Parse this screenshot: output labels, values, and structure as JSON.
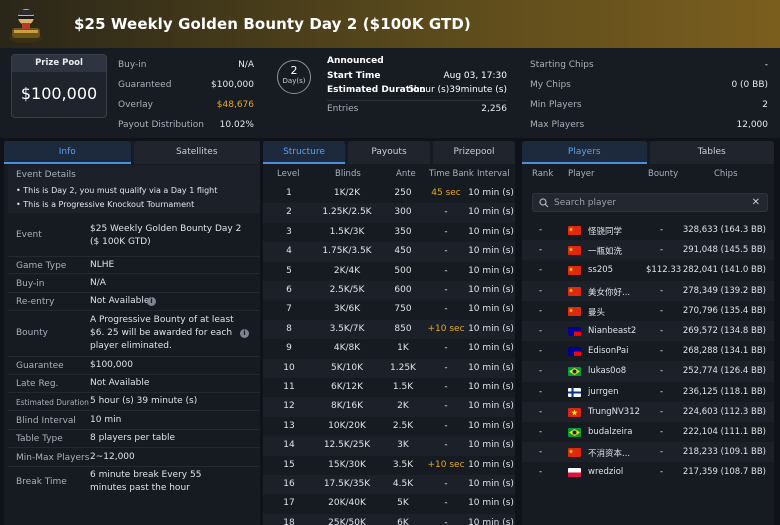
{
  "header": {
    "title": "$25 Weekly Golden Bounty Day 2 ($100K GTD)"
  },
  "prize_pool": {
    "label": "Prize Pool",
    "value": "$100,000"
  },
  "summary_left": [
    {
      "k": "Buy-in",
      "v": "N/A"
    },
    {
      "k": "Guaranteed",
      "v": "$100,000"
    },
    {
      "k": "Overlay",
      "v": "$48,676"
    },
    {
      "k": "Payout Distribution",
      "v": "10.02%"
    }
  ],
  "day": {
    "number": "2",
    "label": "Day(s)"
  },
  "status": {
    "announced": "Announced",
    "start_label": "Start Time",
    "start_value": "Aug 03, 17:30",
    "duration_label": "Estimated Duration",
    "duration_value": "5hour (s)39minute (s)",
    "entries_label": "Entries",
    "entries_value": "2,256"
  },
  "summary_right": [
    {
      "k": "Starting Chips",
      "v": "-"
    },
    {
      "k": "My Chips",
      "v": "0 (0 BB)"
    },
    {
      "k": "Min Players",
      "v": "2"
    },
    {
      "k": "Max Players",
      "v": "12,000"
    }
  ],
  "left_tabs": [
    "Info",
    "Satellites"
  ],
  "event_details": {
    "title": "Event Details",
    "lines": [
      "• This is Day 2, you must qualify via a Day 1 flight",
      "• This is a Progressive Knockout Tournament"
    ]
  },
  "info_rows": [
    {
      "k": "Event",
      "v": "$25 Weekly Golden Bounty Day 2 ($ 100K GTD)"
    },
    {
      "k": "Game Type",
      "v": "NLHE"
    },
    {
      "k": "Buy-in",
      "v": "N/A"
    },
    {
      "k": "Re-entry",
      "v": "Not Available"
    },
    {
      "k": "Bounty",
      "v": "A Progressive Bounty of at least $6. 25 will be awarded for each player eliminated."
    },
    {
      "k": "Guarantee",
      "v": "$100,000"
    },
    {
      "k": "Late Reg.",
      "v": "Not Available"
    },
    {
      "k": "Estimated Duration",
      "v": "5 hour (s) 39 minute (s)"
    },
    {
      "k": "Blind Interval",
      "v": "10 min"
    },
    {
      "k": "Table Type",
      "v": "8 players per table"
    },
    {
      "k": "Min-Max Players",
      "v": "2~12,000"
    },
    {
      "k": "Break Time",
      "v": "6 minute break Every 55 minutes past the hour"
    }
  ],
  "mid_tabs": [
    "Structure",
    "Payouts",
    "Prizepool"
  ],
  "structure": {
    "headers": [
      "Level",
      "Blinds",
      "Ante",
      "Time Bank",
      "Interval"
    ],
    "rows": [
      [
        "1",
        "1K/2K",
        "250",
        "45 sec",
        "10  min (s)"
      ],
      [
        "2",
        "1.25K/2.5K",
        "300",
        "-",
        "10  min (s)"
      ],
      [
        "3",
        "1.5K/3K",
        "350",
        "-",
        "10  min (s)"
      ],
      [
        "4",
        "1.75K/3.5K",
        "450",
        "-",
        "10  min (s)"
      ],
      [
        "5",
        "2K/4K",
        "500",
        "-",
        "10  min (s)"
      ],
      [
        "6",
        "2.5K/5K",
        "600",
        "-",
        "10  min (s)"
      ],
      [
        "7",
        "3K/6K",
        "750",
        "-",
        "10  min (s)"
      ],
      [
        "8",
        "3.5K/7K",
        "850",
        "+10 sec",
        "10  min (s)"
      ],
      [
        "9",
        "4K/8K",
        "1K",
        "-",
        "10  min (s)"
      ],
      [
        "10",
        "5K/10K",
        "1.25K",
        "-",
        "10  min (s)"
      ],
      [
        "11",
        "6K/12K",
        "1.5K",
        "-",
        "10  min (s)"
      ],
      [
        "12",
        "8K/16K",
        "2K",
        "-",
        "10  min (s)"
      ],
      [
        "13",
        "10K/20K",
        "2.5K",
        "-",
        "10  min (s)"
      ],
      [
        "14",
        "12.5K/25K",
        "3K",
        "-",
        "10  min (s)"
      ],
      [
        "15",
        "15K/30K",
        "3.5K",
        "+10 sec",
        "10  min (s)"
      ],
      [
        "16",
        "17.5K/35K",
        "4.5K",
        "-",
        "10  min (s)"
      ],
      [
        "17",
        "20K/40K",
        "5K",
        "-",
        "10  min (s)"
      ],
      [
        "18",
        "25K/50K",
        "6K",
        "-",
        "10  min (s)"
      ]
    ]
  },
  "right_tabs": [
    "Players",
    "Tables"
  ],
  "players": {
    "headers": [
      "Rank",
      "Player",
      "Bounty",
      "Chips"
    ],
    "search_placeholder": "Search player",
    "rows": [
      {
        "rank": "-",
        "flag": "cn",
        "name": "怪骁同学",
        "bounty": "-",
        "chips": "328,633 (164.3 BB)"
      },
      {
        "rank": "-",
        "flag": "cn",
        "name": "一瓶如洗",
        "bounty": "-",
        "chips": "291,048 (145.5 BB)"
      },
      {
        "rank": "-",
        "flag": "cn",
        "name": "ss205",
        "bounty": "$112.33",
        "chips": "282,041 (141.0 BB)"
      },
      {
        "rank": "-",
        "flag": "cn",
        "name": "美女你好...",
        "bounty": "-",
        "chips": "278,349 (139.2 BB)"
      },
      {
        "rank": "-",
        "flag": "cn",
        "name": "曼头",
        "bounty": "-",
        "chips": "270,796 (135.4 BB)"
      },
      {
        "rank": "-",
        "flag": "tw",
        "name": "Nianbeast2",
        "bounty": "-",
        "chips": "269,572 (134.8 BB)"
      },
      {
        "rank": "-",
        "flag": "tw",
        "name": "EdisonPai",
        "bounty": "-",
        "chips": "268,288 (134.1 BB)"
      },
      {
        "rank": "-",
        "flag": "br",
        "name": "lukas0o8",
        "bounty": "-",
        "chips": "252,774 (126.4 BB)"
      },
      {
        "rank": "-",
        "flag": "fi",
        "name": "jurrgen",
        "bounty": "-",
        "chips": "236,125 (118.1 BB)"
      },
      {
        "rank": "-",
        "flag": "vn",
        "name": "TrungNV312",
        "bounty": "-",
        "chips": "224,603 (112.3 BB)"
      },
      {
        "rank": "-",
        "flag": "br",
        "name": "budalzeira",
        "bounty": "-",
        "chips": "222,104 (111.1 BB)"
      },
      {
        "rank": "-",
        "flag": "cn",
        "name": "不消资本...",
        "bounty": "-",
        "chips": "218,233 (109.1 BB)"
      },
      {
        "rank": "-",
        "flag": "pl",
        "name": "wredziol",
        "bounty": "-",
        "chips": "217,359 (108.7 BB)"
      }
    ]
  },
  "colors": {
    "accent": "#4a8fe0",
    "gold": "#e3a82a"
  }
}
